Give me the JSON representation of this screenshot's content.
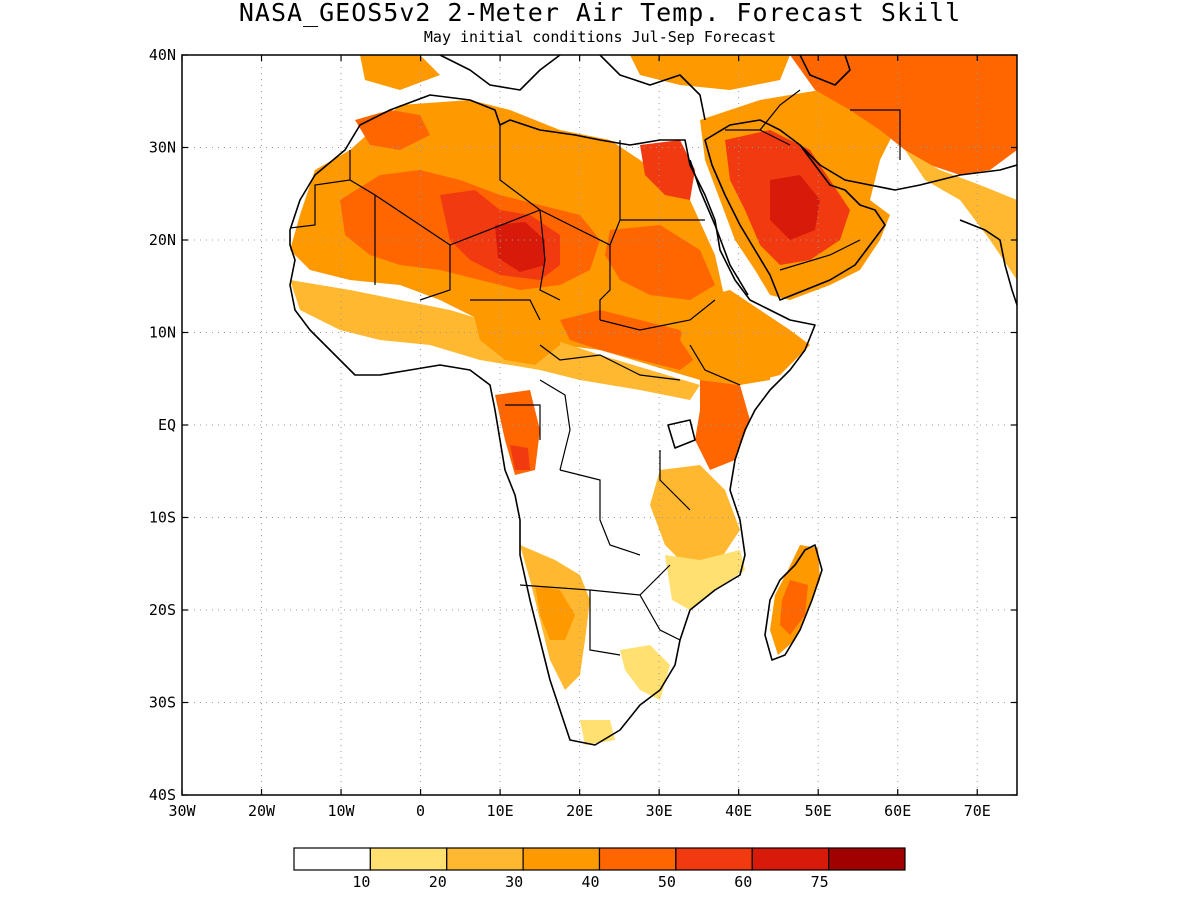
{
  "title": "NASA_GEOS5v2 2-Meter Air Temp. Forecast Skill",
  "subtitle": "May initial conditions  Jul-Sep Forecast",
  "map": {
    "lon_range": [
      -30,
      75
    ],
    "lat_range": [
      -40,
      40
    ],
    "lon_ticks": [
      {
        "value": -30,
        "label": "30W"
      },
      {
        "value": -20,
        "label": "20W"
      },
      {
        "value": -10,
        "label": "10W"
      },
      {
        "value": 0,
        "label": "0"
      },
      {
        "value": 10,
        "label": "10E"
      },
      {
        "value": 20,
        "label": "20E"
      },
      {
        "value": 30,
        "label": "30E"
      },
      {
        "value": 40,
        "label": "40E"
      },
      {
        "value": 50,
        "label": "50E"
      },
      {
        "value": 60,
        "label": "60E"
      },
      {
        "value": 70,
        "label": "70E"
      }
    ],
    "lat_ticks": [
      {
        "value": 40,
        "label": "40N"
      },
      {
        "value": 30,
        "label": "30N"
      },
      {
        "value": 20,
        "label": "20N"
      },
      {
        "value": 10,
        "label": "10N"
      },
      {
        "value": 0,
        "label": "EQ"
      },
      {
        "value": -10,
        "label": "10S"
      },
      {
        "value": -20,
        "label": "20S"
      },
      {
        "value": -30,
        "label": "30S"
      },
      {
        "value": -40,
        "label": "40S"
      }
    ],
    "gridlines": true
  },
  "legend": {
    "bins": [
      {
        "color": "#ffffff"
      },
      {
        "color": "#ffe070"
      },
      {
        "color": "#ffb830"
      },
      {
        "color": "#ff9900"
      },
      {
        "color": "#ff6600"
      },
      {
        "color": "#f23a10"
      },
      {
        "color": "#d81a0a"
      },
      {
        "color": "#a00000"
      }
    ],
    "labels": [
      "10",
      "20",
      "30",
      "40",
      "50",
      "60",
      "75"
    ]
  },
  "colors": {
    "lvl1": "#ffe070",
    "lvl2": "#ffb830",
    "lvl3": "#ff9900",
    "lvl4": "#ff6600",
    "lvl5": "#f23a10",
    "lvl6": "#d81a0a"
  }
}
